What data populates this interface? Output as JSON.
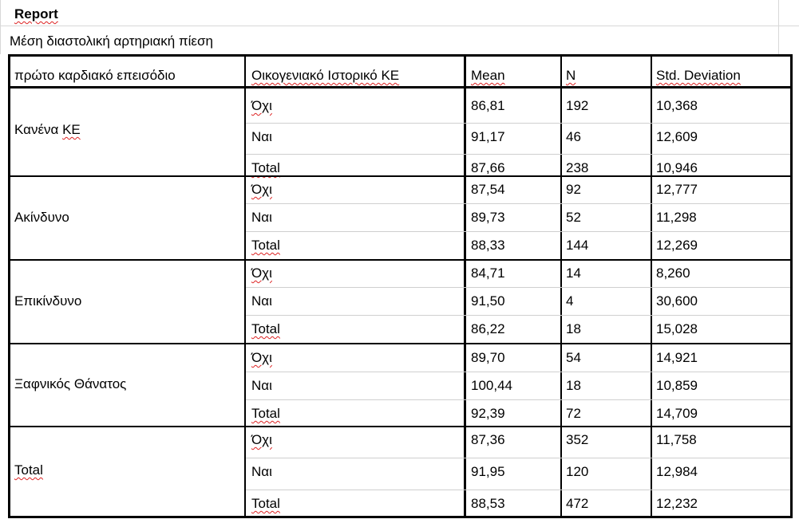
{
  "report_title": "Report",
  "subtitle": "Μέση διαστολική αρτηριακή πίεση",
  "headers": {
    "col1": "πρώτο καρδιακό επεισόδιο",
    "col2": "Οικογενιακό Ιστορικό ΚΕ",
    "mean": "Mean",
    "n": "N",
    "std": "Std. Deviation"
  },
  "groups": [
    {
      "label": "Κανένα ΚΕ",
      "rows": [
        {
          "sub": "Όχι",
          "mean": "86,81",
          "n": "192",
          "std": "10,368"
        },
        {
          "sub": "Ναι",
          "mean": "91,17",
          "n": "46",
          "std": "12,609"
        },
        {
          "sub": "Total",
          "mean": "87,66",
          "n": "238",
          "std": "10,946"
        }
      ]
    },
    {
      "label": "Ακίνδυνο",
      "rows": [
        {
          "sub": "Όχι",
          "mean": "87,54",
          "n": "92",
          "std": "12,777"
        },
        {
          "sub": "Ναι",
          "mean": "89,73",
          "n": "52",
          "std": "11,298"
        },
        {
          "sub": "Total",
          "mean": "88,33",
          "n": "144",
          "std": "12,269"
        }
      ]
    },
    {
      "label": "Επικίνδυνο",
      "rows": [
        {
          "sub": "Όχι",
          "mean": "84,71",
          "n": "14",
          "std": "8,260"
        },
        {
          "sub": "Ναι",
          "mean": "91,50",
          "n": "4",
          "std": "30,600"
        },
        {
          "sub": "Total",
          "mean": "86,22",
          "n": "18",
          "std": "15,028"
        }
      ]
    },
    {
      "label": "Ξαφνικός Θάνατος",
      "rows": [
        {
          "sub": "Όχι",
          "mean": "89,70",
          "n": "54",
          "std": "14,921"
        },
        {
          "sub": "Ναι",
          "mean": "100,44",
          "n": "18",
          "std": "10,859"
        },
        {
          "sub": "Total",
          "mean": "92,39",
          "n": "72",
          "std": "14,709"
        }
      ]
    },
    {
      "label": "Total",
      "rows": [
        {
          "sub": "Όχι",
          "mean": "87,36",
          "n": "352",
          "std": "11,758"
        },
        {
          "sub": "Ναι",
          "mean": "91,95",
          "n": "120",
          "std": "12,984"
        },
        {
          "sub": "Total",
          "mean": "88,53",
          "n": "472",
          "std": "12,232"
        }
      ]
    }
  ]
}
